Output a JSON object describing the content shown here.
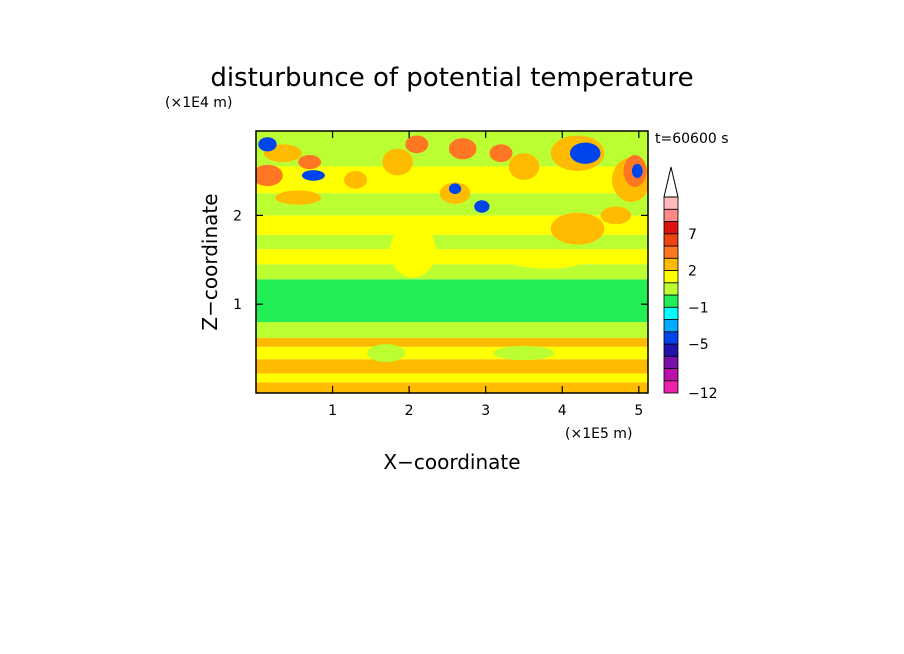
{
  "chart_data": {
    "type": "heatmap",
    "title": "disturbunce of potential temperature",
    "xlabel": "X−coordinate",
    "ylabel": "Z−coordinate",
    "x_unit": "(×1E5 m)",
    "y_unit": "(×1E4 m)",
    "time_label": "t=60600 s",
    "xlim": [
      0,
      5.12
    ],
    "ylim": [
      0,
      2.95
    ],
    "x_ticks": [
      "1",
      "2",
      "3",
      "4",
      "5"
    ],
    "x_tick_values": [
      1,
      2,
      3,
      4,
      5
    ],
    "y_ticks": [
      "1",
      "2"
    ],
    "y_tick_values": [
      1,
      2
    ],
    "colorbar": {
      "levels": [
        -12,
        -11,
        -9,
        -7,
        -5,
        -3,
        -2,
        -1,
        0,
        1,
        2,
        3,
        5,
        7,
        9,
        11
      ],
      "tick_labels": [
        "−12",
        "−5",
        "−1",
        "2",
        "7"
      ],
      "tick_values": [
        -12,
        -5,
        -1,
        2,
        7
      ],
      "colors": [
        "#ee22aa",
        "#bb11aa",
        "#7711aa",
        "#2211aa",
        "#0044ee",
        "#00aaff",
        "#00ffff",
        "#22ee55",
        "#bbff33",
        "#ffff00",
        "#ffbb00",
        "#ff7722",
        "#ee4411",
        "#dd1111",
        "#ff8888",
        "#ffbbbb"
      ],
      "extend": "max"
    },
    "bands": [
      {
        "z": [
          0.0,
          0.12
        ],
        "value": 2.5
      },
      {
        "z": [
          0.12,
          0.22
        ],
        "value": 1.5
      },
      {
        "z": [
          0.22,
          0.38
        ],
        "value": 2.5
      },
      {
        "z": [
          0.38,
          0.52
        ],
        "value": 1.5
      },
      {
        "z": [
          0.52,
          0.62
        ],
        "value": 2.5
      },
      {
        "z": [
          0.62,
          0.8
        ],
        "value": 0.5
      },
      {
        "z": [
          0.8,
          1.28
        ],
        "value": -0.5
      },
      {
        "z": [
          1.28,
          1.45
        ],
        "value": 0.5
      },
      {
        "z": [
          1.45,
          1.62
        ],
        "value": 1.5
      },
      {
        "z": [
          1.62,
          1.78
        ],
        "value": 0.5
      },
      {
        "z": [
          1.78,
          2.0
        ],
        "value": 1.5
      },
      {
        "z": [
          2.0,
          2.25
        ],
        "value": 0.5
      },
      {
        "z": [
          2.25,
          2.55
        ],
        "value": 1.5
      },
      {
        "z": [
          2.55,
          2.95
        ],
        "value": 0.5
      }
    ],
    "blobs": [
      {
        "x": 0.15,
        "z": 2.45,
        "rx": 0.2,
        "rz": 0.12,
        "value": 4
      },
      {
        "x": 0.55,
        "z": 2.2,
        "rx": 0.3,
        "rz": 0.08,
        "value": 2.5
      },
      {
        "x": 0.35,
        "z": 2.7,
        "rx": 0.25,
        "rz": 0.1,
        "value": 2.5
      },
      {
        "x": 0.7,
        "z": 2.6,
        "rx": 0.15,
        "rz": 0.08,
        "value": 4
      },
      {
        "x": 0.15,
        "z": 2.8,
        "rx": 0.12,
        "rz": 0.08,
        "value": -4
      },
      {
        "x": 0.75,
        "z": 2.45,
        "rx": 0.15,
        "rz": 0.06,
        "value": -4
      },
      {
        "x": 1.3,
        "z": 2.4,
        "rx": 0.15,
        "rz": 0.1,
        "value": 2.5
      },
      {
        "x": 1.85,
        "z": 2.6,
        "rx": 0.2,
        "rz": 0.15,
        "value": 2.5
      },
      {
        "x": 2.1,
        "z": 2.8,
        "rx": 0.15,
        "rz": 0.1,
        "value": 4
      },
      {
        "x": 2.7,
        "z": 2.75,
        "rx": 0.18,
        "rz": 0.12,
        "value": 4
      },
      {
        "x": 2.6,
        "z": 2.25,
        "rx": 0.2,
        "rz": 0.12,
        "value": 2.5
      },
      {
        "x": 2.6,
        "z": 2.3,
        "rx": 0.08,
        "rz": 0.06,
        "value": -4
      },
      {
        "x": 2.95,
        "z": 2.1,
        "rx": 0.1,
        "rz": 0.07,
        "value": -4
      },
      {
        "x": 3.2,
        "z": 2.7,
        "rx": 0.15,
        "rz": 0.1,
        "value": 4
      },
      {
        "x": 3.5,
        "z": 2.55,
        "rx": 0.2,
        "rz": 0.15,
        "value": 2.5
      },
      {
        "x": 4.2,
        "z": 2.7,
        "rx": 0.35,
        "rz": 0.2,
        "value": 2.5
      },
      {
        "x": 4.3,
        "z": 2.7,
        "rx": 0.2,
        "rz": 0.12,
        "value": -4
      },
      {
        "x": 4.2,
        "z": 1.85,
        "rx": 0.25,
        "rz": 0.12,
        "value": 4
      },
      {
        "x": 4.2,
        "z": 1.85,
        "rx": 0.35,
        "rz": 0.18,
        "value": 2.5
      },
      {
        "x": 4.9,
        "z": 2.4,
        "rx": 0.25,
        "rz": 0.25,
        "value": 2.5
      },
      {
        "x": 4.95,
        "z": 2.5,
        "rx": 0.15,
        "rz": 0.18,
        "value": 4
      },
      {
        "x": 4.98,
        "z": 2.5,
        "rx": 0.07,
        "rz": 0.08,
        "value": -4
      },
      {
        "x": 4.7,
        "z": 2.0,
        "rx": 0.2,
        "rz": 0.1,
        "value": 2.5
      },
      {
        "x": 2.05,
        "z": 1.6,
        "rx": 0.3,
        "rz": 0.3,
        "value": 1.5
      },
      {
        "x": 3.8,
        "z": 1.5,
        "rx": 0.5,
        "rz": 0.1,
        "value": 1.5
      },
      {
        "x": 1.7,
        "z": 0.45,
        "rx": 0.25,
        "rz": 0.1,
        "value": 0.5
      },
      {
        "x": 3.5,
        "z": 0.45,
        "rx": 0.4,
        "rz": 0.08,
        "value": 0.5
      }
    ]
  }
}
